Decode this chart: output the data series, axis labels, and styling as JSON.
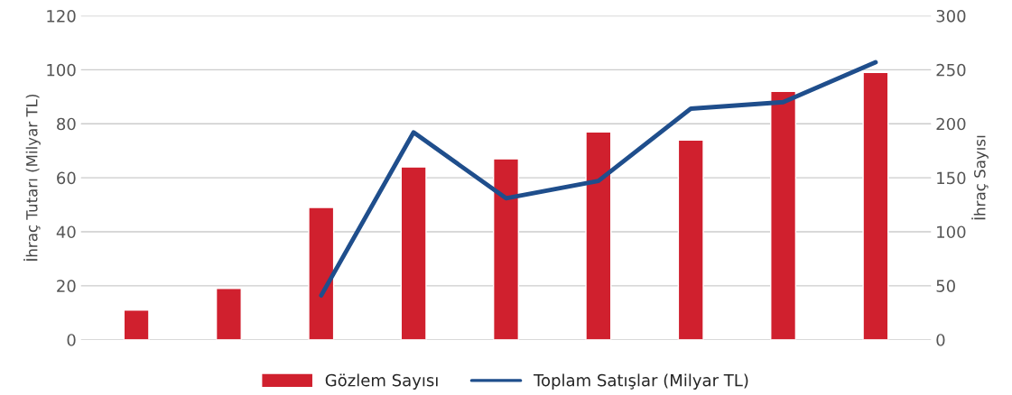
{
  "chart_data": {
    "type": "bar",
    "ylabel": "İhraç Tutarı (Milyar TL)",
    "y2label": "İhraç Sayısı",
    "categories": [
      null,
      null,
      null,
      null,
      null,
      null,
      null,
      null,
      null
    ],
    "series": [
      {
        "name": "Gözlem Sayısı",
        "color": "#d0202e",
        "values": [
          11,
          19,
          49,
          64,
          67,
          77,
          74,
          92,
          99
        ]
      },
      {
        "name": "Toplam Satışlar (Milyar TL)",
        "type": "line",
        "axis": "y2",
        "color": "#1f4e8c",
        "values": [
          null,
          null,
          41,
          192,
          131,
          147,
          214,
          220,
          257
        ]
      }
    ],
    "ylim": [
      0,
      120
    ],
    "yticks": [
      0,
      20,
      40,
      60,
      80,
      100,
      120
    ],
    "y2lim": [
      0,
      300
    ],
    "y2ticks": [
      0,
      50,
      100,
      150,
      200,
      250,
      300
    ],
    "grid": "y",
    "legend": "bottom",
    "marker": "none",
    "line_style": "solid"
  }
}
